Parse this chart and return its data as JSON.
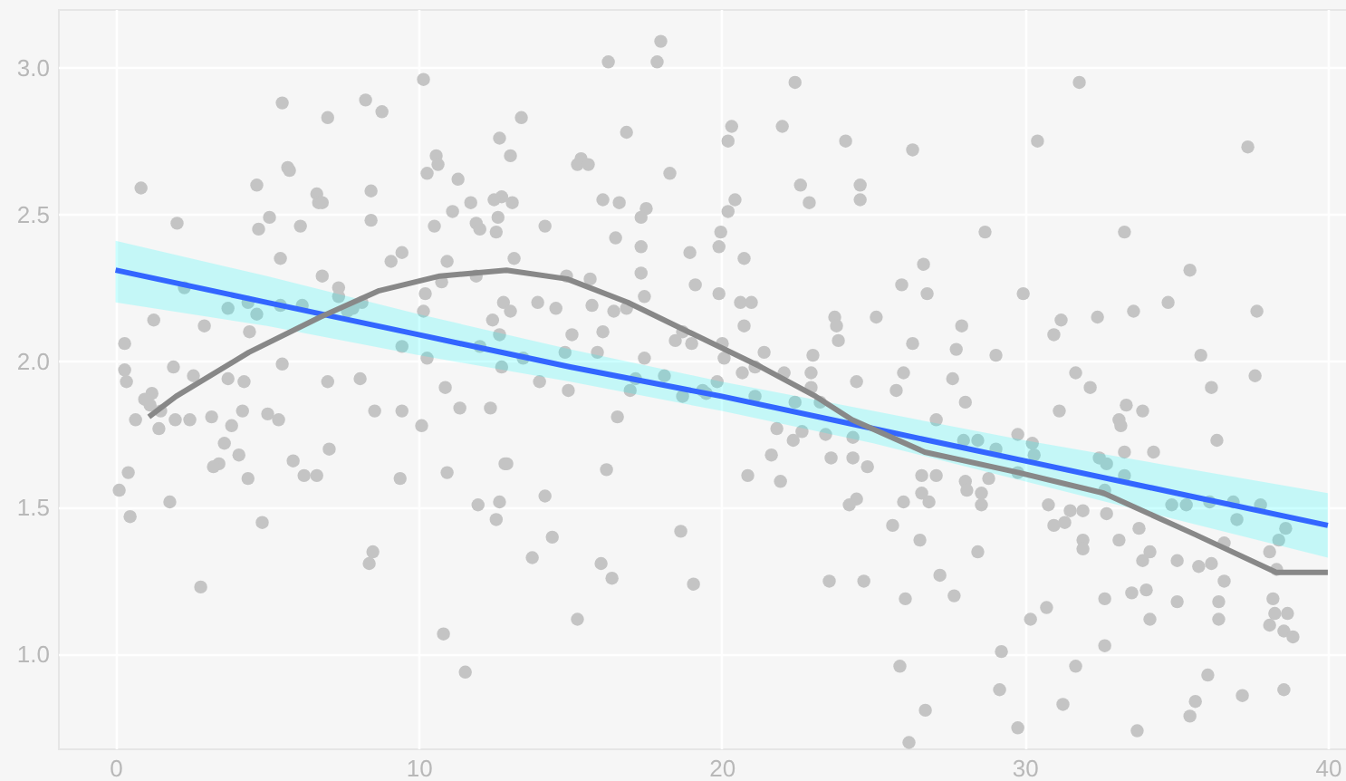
{
  "chart_data": {
    "type": "scatter",
    "xlim": [
      -1.9,
      40.6
    ],
    "ylim": [
      0.68,
      3.2
    ],
    "xticks": [
      0,
      10,
      20,
      30,
      40
    ],
    "yticks": [
      {
        "value": 1,
        "label": "1.0"
      },
      1.5,
      {
        "value": 2,
        "label": "2.0"
      },
      2.5,
      {
        "value": 3,
        "label": "3.0"
      }
    ],
    "grid": true,
    "marker": "circle",
    "series": [
      {
        "color": "#c4c4c4",
        "x": [
          5.5,
          7.0,
          8.25,
          8.79,
          10.16,
          0.84,
          2.03,
          4.66,
          5.68,
          5.74,
          5.08,
          4.72,
          6.1,
          6.64,
          6.7,
          6.82,
          8.43,
          8.43,
          10.58,
          10.64,
          10.28,
          11.3,
          12.67,
          11.12,
          11.72,
          11.9,
          12.02,
          12.56,
          12.62,
          12.74,
          10.52,
          5.44,
          9.09,
          9.45,
          6.82,
          7.36,
          7.36,
          10.94,
          10.76,
          11.9,
          10.22,
          10.16,
          12.44,
          12.8,
          12.67,
          2.27,
          1.26,
          2.93,
          3.71,
          4.37,
          4.66,
          4.42,
          5.44,
          6.16,
          7.83,
          7.65,
          8.13,
          9.45,
          10.28,
          12.74,
          12.02,
          0.3,
          0.3,
          0.36,
          1.2,
          1.91,
          2.57,
          3.71,
          4.24,
          5.5,
          7.0,
          8.07,
          10.88,
          0.96,
          1.14,
          1.49,
          0.66,
          1.43,
          1.97,
          2.45,
          3.17,
          3.83,
          4.19,
          5.02,
          5.38,
          8.55,
          9.45,
          10.1,
          11.36,
          12.37,
          0.42,
          0.12,
          0.48,
          1.79,
          3.59,
          3.41,
          3.23,
          4.07,
          4.37,
          4.84,
          5.86,
          6.22,
          6.64,
          7.05,
          9.39,
          10.94,
          11.96,
          12.67,
          12.56,
          12.85,
          2.81,
          8.49,
          8.37,
          10.82,
          11.54,
          17.99,
          16.26,
          17.87,
          22.42,
          13.39,
          13.03,
          16.86,
          15.36,
          15.24,
          15.6,
          18.29,
          20.33,
          20.21,
          22.0,
          24.09,
          26.3,
          22.6,
          22.89,
          24.57,
          24.57,
          12.49,
          13.09,
          14.17,
          16.08,
          16.62,
          17.51,
          17.34,
          20.44,
          20.21,
          19.97,
          19.91,
          16.5,
          17.34,
          18.95,
          20.74,
          13.15,
          17.34,
          14.88,
          15.66,
          19.13,
          19.91,
          26.66,
          26.78,
          25.94,
          13.03,
          13.93,
          14.53,
          15.72,
          16.44,
          16.86,
          17.45,
          20.62,
          20.98,
          20.74,
          23.73,
          23.79,
          23.85,
          25.1,
          16.08,
          15.06,
          18.71,
          18.47,
          19.01,
          20.02,
          20.08,
          21.4,
          23.01,
          22.95,
          26.3,
          26.0,
          24.45,
          22.06,
          14.83,
          15.9,
          17.45,
          18.11,
          17.16,
          19.85,
          21.1,
          20.68,
          13.45,
          13.99,
          14.94,
          16.98,
          19.37,
          22.95,
          25.76,
          21.1,
          18.71,
          19.49,
          16.56,
          12.91,
          16.2,
          14.17,
          14.41,
          13.75,
          16.02,
          16.38,
          15.24,
          18.65,
          19.07,
          21.82,
          21.64,
          20.86,
          21.94,
          22.36,
          22.65,
          22.42,
          23.25,
          23.43,
          23.61,
          24.33,
          24.33,
          24.81,
          24.45,
          24.21,
          23.55,
          24.69,
          25.64,
          26.0,
          26.54,
          26.6,
          26.6,
          26.84,
          27.08,
          27.08,
          26.06,
          25.88,
          26.72,
          26.18,
          27.2,
          31.8,
          30.42,
          37.36,
          28.69,
          33.29,
          35.45,
          29.95,
          27.92,
          27.74,
          29.05,
          27.62,
          31.2,
          30.96,
          32.4,
          33.59,
          34.73,
          37.66,
          35.81,
          37.6,
          31.68,
          32.16,
          36.16,
          28.04,
          31.14,
          33.35,
          33.89,
          33.11,
          33.17,
          36.34,
          29.77,
          30.25,
          30.31,
          29.05,
          28.45,
          27.98,
          33.29,
          34.25,
          32.46,
          32.7,
          29.77,
          28.81,
          28.04,
          28.09,
          28.57,
          28.57,
          33.29,
          32.64,
          30.78,
          31.5,
          31.92,
          31.32,
          30.96,
          32.7,
          34.85,
          35.33,
          36.1,
          36.88,
          37.78,
          37.0,
          33.77,
          38.61,
          38.38,
          38.08,
          36.58,
          31.92,
          31.92,
          33.11,
          34.13,
          33.89,
          35.03,
          35.74,
          36.16,
          38.31,
          36.58,
          28.45,
          27.67,
          32.64,
          33.53,
          34.01,
          35.03,
          36.4,
          36.4,
          34.13,
          30.72,
          30.19,
          38.19,
          38.25,
          38.67,
          38.08,
          38.55,
          38.85,
          32.64,
          29.23,
          31.68,
          29.17,
          31.26,
          29.77,
          33.71,
          36.04,
          35.63,
          35.45,
          37.18,
          38.55
        ],
        "values": [
          2.88,
          2.83,
          2.89,
          2.85,
          2.96,
          2.59,
          2.47,
          2.6,
          2.66,
          2.65,
          2.49,
          2.45,
          2.46,
          2.57,
          2.54,
          2.54,
          2.58,
          2.48,
          2.7,
          2.67,
          2.64,
          2.62,
          2.76,
          2.51,
          2.54,
          2.47,
          2.45,
          2.44,
          2.49,
          2.56,
          2.46,
          2.35,
          2.34,
          2.37,
          2.29,
          2.25,
          2.22,
          2.34,
          2.27,
          2.29,
          2.23,
          2.17,
          2.14,
          2.2,
          2.09,
          2.25,
          2.14,
          2.12,
          2.18,
          2.2,
          2.16,
          2.1,
          2.19,
          2.19,
          2.18,
          2.17,
          2.2,
          2.05,
          2.01,
          1.98,
          2.05,
          2.06,
          1.97,
          1.93,
          1.89,
          1.98,
          1.95,
          1.94,
          1.93,
          1.99,
          1.93,
          1.94,
          1.91,
          1.87,
          1.85,
          1.83,
          1.8,
          1.77,
          1.8,
          1.8,
          1.81,
          1.78,
          1.83,
          1.82,
          1.8,
          1.83,
          1.83,
          1.78,
          1.84,
          1.84,
          1.62,
          1.56,
          1.47,
          1.52,
          1.72,
          1.65,
          1.64,
          1.68,
          1.6,
          1.45,
          1.66,
          1.61,
          1.61,
          1.7,
          1.6,
          1.62,
          1.51,
          1.52,
          1.46,
          1.65,
          1.23,
          1.35,
          1.31,
          1.07,
          0.94,
          3.09,
          3.02,
          3.02,
          2.95,
          2.83,
          2.7,
          2.78,
          2.69,
          2.67,
          2.67,
          2.64,
          2.8,
          2.75,
          2.8,
          2.75,
          2.72,
          2.6,
          2.54,
          2.6,
          2.55,
          2.55,
          2.54,
          2.46,
          2.55,
          2.54,
          2.52,
          2.49,
          2.55,
          2.51,
          2.44,
          2.39,
          2.42,
          2.39,
          2.37,
          2.35,
          2.35,
          2.3,
          2.29,
          2.28,
          2.26,
          2.23,
          2.33,
          2.23,
          2.26,
          2.17,
          2.2,
          2.18,
          2.19,
          2.17,
          2.18,
          2.22,
          2.2,
          2.2,
          2.12,
          2.15,
          2.12,
          2.07,
          2.15,
          2.1,
          2.09,
          2.1,
          2.07,
          2.06,
          2.06,
          2.01,
          2.03,
          2.02,
          1.96,
          2.06,
          1.96,
          1.93,
          1.96,
          2.03,
          2.03,
          2.01,
          1.95,
          1.94,
          1.93,
          1.98,
          1.96,
          2.01,
          1.93,
          1.9,
          1.9,
          1.9,
          1.91,
          1.9,
          1.88,
          1.88,
          1.89,
          1.81,
          1.65,
          1.63,
          1.54,
          1.4,
          1.33,
          1.31,
          1.26,
          1.12,
          1.42,
          1.24,
          1.77,
          1.68,
          1.61,
          1.59,
          1.73,
          1.76,
          1.86,
          1.86,
          1.75,
          1.67,
          1.74,
          1.67,
          1.64,
          1.53,
          1.51,
          1.25,
          1.25,
          1.44,
          1.52,
          1.39,
          1.61,
          1.55,
          1.52,
          1.8,
          1.61,
          1.19,
          0.96,
          0.81,
          0.7,
          1.27,
          2.95,
          2.75,
          2.73,
          2.44,
          2.44,
          2.31,
          2.23,
          2.12,
          2.04,
          2.02,
          1.94,
          2.14,
          2.09,
          2.15,
          2.17,
          2.2,
          2.17,
          2.02,
          1.95,
          1.96,
          1.91,
          1.91,
          1.86,
          1.83,
          1.85,
          1.83,
          1.8,
          1.78,
          1.73,
          1.75,
          1.72,
          1.68,
          1.7,
          1.73,
          1.73,
          1.69,
          1.69,
          1.67,
          1.65,
          1.62,
          1.6,
          1.59,
          1.56,
          1.55,
          1.51,
          1.61,
          1.56,
          1.51,
          1.49,
          1.49,
          1.45,
          1.44,
          1.48,
          1.51,
          1.51,
          1.52,
          1.52,
          1.51,
          1.46,
          1.43,
          1.43,
          1.39,
          1.35,
          1.38,
          1.39,
          1.36,
          1.39,
          1.35,
          1.32,
          1.32,
          1.3,
          1.31,
          1.29,
          1.25,
          1.35,
          1.2,
          1.19,
          1.21,
          1.22,
          1.18,
          1.18,
          1.12,
          1.12,
          1.16,
          1.12,
          1.19,
          1.14,
          1.14,
          1.1,
          1.08,
          1.06,
          1.03,
          1.01,
          0.96,
          0.88,
          0.83,
          0.75,
          0.74,
          0.93,
          0.84,
          0.79,
          0.86,
          0.88
        ]
      },
      {
        "type": "line",
        "marker": "none",
        "color": "#3366ff",
        "x": [
          0,
          5,
          10,
          15,
          20,
          25,
          30,
          35,
          40
        ],
        "values": [
          2.31,
          2.2,
          2.09,
          1.98,
          1.88,
          1.77,
          1.66,
          1.55,
          1.44
        ],
        "lower": [
          2.2,
          2.12,
          2.02,
          1.93,
          1.83,
          1.72,
          1.59,
          1.46,
          1.33
        ],
        "upper": [
          2.41,
          2.29,
          2.16,
          2.04,
          1.93,
          1.83,
          1.73,
          1.64,
          1.55
        ]
      },
      {
        "type": "line",
        "marker": "none",
        "color": "#888888",
        "x": [
          1.1,
          2.0,
          4.4,
          6.75,
          8.7,
          10.7,
          12.9,
          14.9,
          16.9,
          18.9,
          21.3,
          23.1,
          24.3,
          26.7,
          29.8,
          32.6,
          35.6,
          38.3,
          40
        ],
        "values": [
          1.81,
          1.88,
          2.03,
          2.15,
          2.24,
          2.29,
          2.31,
          2.28,
          2.2,
          2.1,
          1.98,
          1.88,
          1.8,
          1.69,
          1.62,
          1.55,
          1.41,
          1.28,
          1.28
        ]
      }
    ]
  }
}
